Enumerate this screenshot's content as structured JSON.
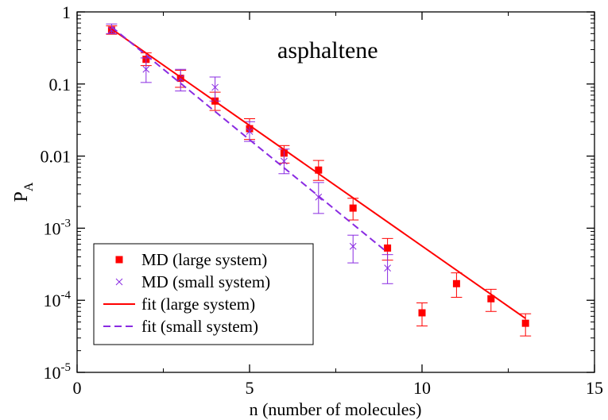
{
  "chart_data": {
    "type": "scatter",
    "annotation": "asphaltene",
    "xlabel": "n (number of molecules)",
    "ylabel": "P",
    "ylabel_subscript": "A",
    "xlim": [
      0,
      15
    ],
    "ylim": [
      1e-05,
      1
    ],
    "yscale": "log",
    "grid": false,
    "legend_position": "bottom-left",
    "x_ticks": [
      {
        "value": 0,
        "label": "0"
      },
      {
        "value": 5,
        "label": "5"
      },
      {
        "value": 10,
        "label": "10"
      },
      {
        "value": 15,
        "label": "15"
      }
    ],
    "y_ticks": [
      {
        "value": 1,
        "label": "1",
        "base": "",
        "exp": ""
      },
      {
        "value": 0.1,
        "label": "0.1",
        "base": "",
        "exp": ""
      },
      {
        "value": 0.01,
        "label": "0.01",
        "base": "",
        "exp": ""
      },
      {
        "value": 0.001,
        "label": "",
        "base": "10",
        "exp": "-3"
      },
      {
        "value": 0.0001,
        "label": "",
        "base": "10",
        "exp": "-4"
      },
      {
        "value": 1e-05,
        "label": "",
        "base": "10",
        "exp": "-5"
      }
    ],
    "series": [
      {
        "name": "MD (large system)",
        "kind": "points",
        "marker": "square",
        "color": "#ff0000",
        "x": [
          1,
          2,
          3,
          4,
          5,
          6,
          7,
          8,
          9,
          10,
          11,
          12,
          13
        ],
        "y": [
          0.56,
          0.22,
          0.12,
          0.058,
          0.024,
          0.011,
          0.0064,
          0.0019,
          0.00053,
          6.7e-05,
          0.00017,
          0.000105,
          4.8e-05
        ],
        "err_low": [
          0.49,
          0.18,
          0.09,
          0.043,
          0.017,
          0.008,
          0.0046,
          0.0013,
          0.00036,
          4.4e-05,
          0.00011,
          7e-05,
          3.2e-05
        ],
        "err_high": [
          0.64,
          0.27,
          0.155,
          0.077,
          0.033,
          0.014,
          0.0087,
          0.0026,
          0.00072,
          9.2e-05,
          0.00024,
          0.000142,
          6.5e-05
        ]
      },
      {
        "name": "MD (small system)",
        "kind": "points",
        "marker": "x",
        "color": "#8a2be2",
        "x": [
          1,
          2,
          3,
          4,
          5,
          6,
          7,
          8,
          9
        ],
        "y": [
          0.56,
          0.16,
          0.12,
          0.09,
          0.022,
          0.0085,
          0.0027,
          0.00056,
          0.00028
        ],
        "err_low": [
          0.5,
          0.105,
          0.08,
          0.058,
          0.016,
          0.0057,
          0.0016,
          0.00033,
          0.00017
        ],
        "err_high": [
          0.68,
          0.23,
          0.16,
          0.125,
          0.03,
          0.0125,
          0.0043,
          0.0008,
          0.00043
        ]
      },
      {
        "name": "fit (large system)",
        "kind": "line",
        "dash": "solid",
        "color": "#ff0000",
        "x": [
          1,
          13
        ],
        "y": [
          0.58,
          5.6e-05
        ]
      },
      {
        "name": "fit (small system)",
        "kind": "line",
        "dash": "dashed",
        "color": "#8a2be2",
        "x": [
          1,
          9
        ],
        "y": [
          0.62,
          0.00046
        ]
      }
    ]
  }
}
